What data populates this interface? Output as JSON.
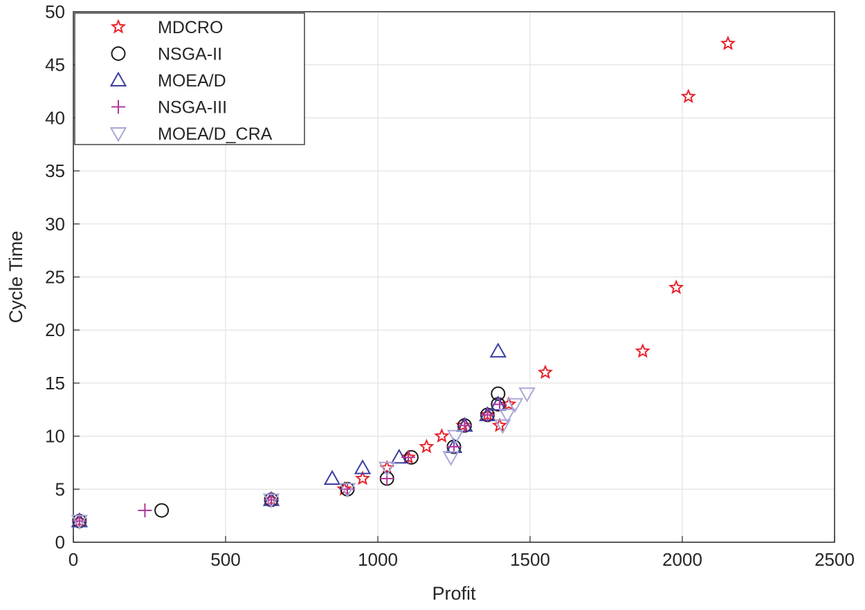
{
  "chart_data": {
    "type": "scatter",
    "title": "",
    "xlabel": "Profit",
    "ylabel": "Cycle Time",
    "xlim": [
      0,
      2500
    ],
    "ylim": [
      0,
      50
    ],
    "xticks": [
      0,
      500,
      1000,
      1500,
      2000,
      2500
    ],
    "yticks": [
      0,
      5,
      10,
      15,
      20,
      25,
      30,
      35,
      40,
      45,
      50
    ],
    "xtick_labels": [
      "0",
      "500",
      "1000",
      "1500",
      "2000",
      "2500"
    ],
    "ytick_labels": [
      "0",
      "5",
      "10",
      "15",
      "20",
      "25",
      "30",
      "35",
      "40",
      "45",
      "50"
    ],
    "grid": true,
    "legend_position": "top-left",
    "series": [
      {
        "name": "MDCRO",
        "marker": "star",
        "color": "#e8222b",
        "points": [
          [
            20,
            2
          ],
          [
            650,
            4
          ],
          [
            890,
            5
          ],
          [
            950,
            6
          ],
          [
            1030,
            7
          ],
          [
            1100,
            8
          ],
          [
            1160,
            9
          ],
          [
            1210,
            10
          ],
          [
            1280,
            11
          ],
          [
            1360,
            12
          ],
          [
            1430,
            13
          ],
          [
            1400,
            11
          ],
          [
            1550,
            16
          ],
          [
            1870,
            18
          ],
          [
            1980,
            24
          ],
          [
            2020,
            42
          ],
          [
            2150,
            47
          ]
        ]
      },
      {
        "name": "NSGA-II",
        "marker": "circle",
        "color": "#1a1a1a",
        "points": [
          [
            20,
            2
          ],
          [
            290,
            3
          ],
          [
            650,
            4
          ],
          [
            900,
            5
          ],
          [
            1030,
            6
          ],
          [
            1110,
            8
          ],
          [
            1250,
            9
          ],
          [
            1285,
            11
          ],
          [
            1360,
            12
          ],
          [
            1395,
            13
          ],
          [
            1395,
            14
          ]
        ]
      },
      {
        "name": "MOEA/D",
        "marker": "triangle-up",
        "color": "#3a3da0",
        "points": [
          [
            20,
            2
          ],
          [
            650,
            4
          ],
          [
            850,
            6
          ],
          [
            950,
            7
          ],
          [
            1070,
            8
          ],
          [
            1250,
            9
          ],
          [
            1285,
            11
          ],
          [
            1360,
            12
          ],
          [
            1395,
            13
          ],
          [
            1395,
            18
          ]
        ]
      },
      {
        "name": "NSGA-III",
        "marker": "plus",
        "color": "#b0389a",
        "points": [
          [
            20,
            2
          ],
          [
            235,
            3
          ],
          [
            650,
            4
          ],
          [
            900,
            5
          ],
          [
            1030,
            6
          ],
          [
            1100,
            8
          ],
          [
            1250,
            9
          ],
          [
            1285,
            11
          ],
          [
            1360,
            12
          ],
          [
            1400,
            13
          ]
        ]
      },
      {
        "name": "MOEA/D_CRA",
        "marker": "triangle-down",
        "color": "#a8a8d8",
        "points": [
          [
            20,
            2
          ],
          [
            650,
            4
          ],
          [
            900,
            5
          ],
          [
            1030,
            7
          ],
          [
            1240,
            8
          ],
          [
            1255,
            10
          ],
          [
            1410,
            11
          ],
          [
            1425,
            12
          ],
          [
            1450,
            13
          ],
          [
            1490,
            14
          ]
        ]
      }
    ]
  }
}
